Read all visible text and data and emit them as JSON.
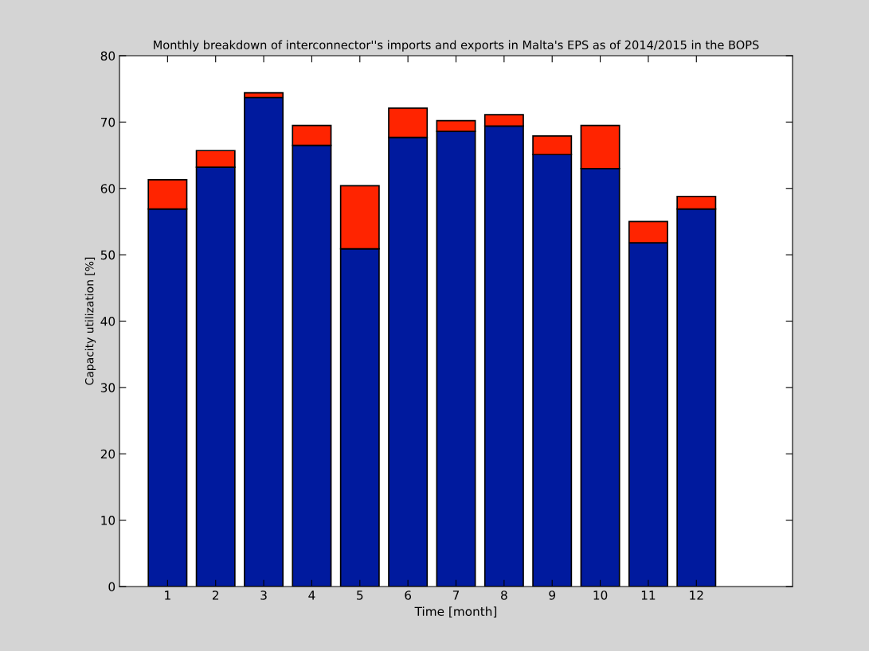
{
  "chart_data": {
    "type": "bar",
    "title": "Monthly breakdown of interconnector''s imports and exports in Malta's EPS as of 2014/2015 in the BOPS",
    "xlabel": "Time [month]",
    "ylabel": "Capacity utilization [%]",
    "x": [
      1,
      2,
      3,
      4,
      5,
      6,
      7,
      8,
      9,
      10,
      11,
      12
    ],
    "stacked": true,
    "series": [
      {
        "color": "#001a9e",
        "values": [
          56.9,
          63.2,
          73.7,
          66.5,
          50.9,
          67.7,
          68.6,
          69.4,
          65.1,
          63.0,
          51.8,
          56.9
        ]
      },
      {
        "color": "#ff2400",
        "values": [
          4.4,
          2.5,
          0.7,
          3.0,
          9.5,
          4.4,
          1.6,
          1.7,
          2.8,
          6.5,
          3.2,
          1.9
        ]
      }
    ],
    "xlim": [
      0,
      14
    ],
    "xticks": [
      1,
      2,
      3,
      4,
      5,
      6,
      7,
      8,
      9,
      10,
      11,
      12
    ],
    "ylim": [
      0,
      80
    ],
    "yticks": [
      0,
      10,
      20,
      30,
      40,
      50,
      60,
      70,
      80
    ],
    "grid": false
  }
}
